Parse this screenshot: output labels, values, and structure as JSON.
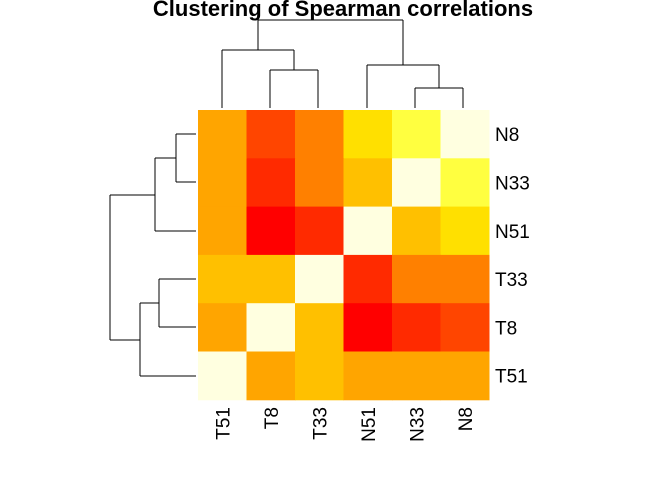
{
  "chart_data": {
    "type": "heatmap",
    "title": "Clustering of Spearman correlations",
    "columns": [
      "T51",
      "T8",
      "T33",
      "N51",
      "N33",
      "N8"
    ],
    "rows": [
      "N8",
      "N33",
      "N51",
      "T33",
      "T8",
      "T51"
    ],
    "cell_colors": [
      [
        "#FFA500",
        "#FF4500",
        "#FF8000",
        "#FFE000",
        "#FFFF40",
        "#FFFFE0"
      ],
      [
        "#FFA500",
        "#FF2A00",
        "#FF8000",
        "#FFC000",
        "#FFFFE0",
        "#FFFF40"
      ],
      [
        "#FFA500",
        "#FF0000",
        "#FF2A00",
        "#FFFFE0",
        "#FFC000",
        "#FFE000"
      ],
      [
        "#FFC000",
        "#FFC000",
        "#FFFFE0",
        "#FF2A00",
        "#FF8000",
        "#FF8000"
      ],
      [
        "#FFA500",
        "#FFFFE0",
        "#FFC000",
        "#FF0000",
        "#FF2A00",
        "#FF4500"
      ],
      [
        "#FFFFE0",
        "#FFA500",
        "#FFC000",
        "#FFA500",
        "#FFA500",
        "#FFA500"
      ]
    ],
    "column_dendrogram": "((T51,(T8,T33)),(N51,(N33,N8)))",
    "row_dendrogram": "(((N8,N33),N51),((T33,T8),T51))",
    "legend": false,
    "grid": false
  }
}
